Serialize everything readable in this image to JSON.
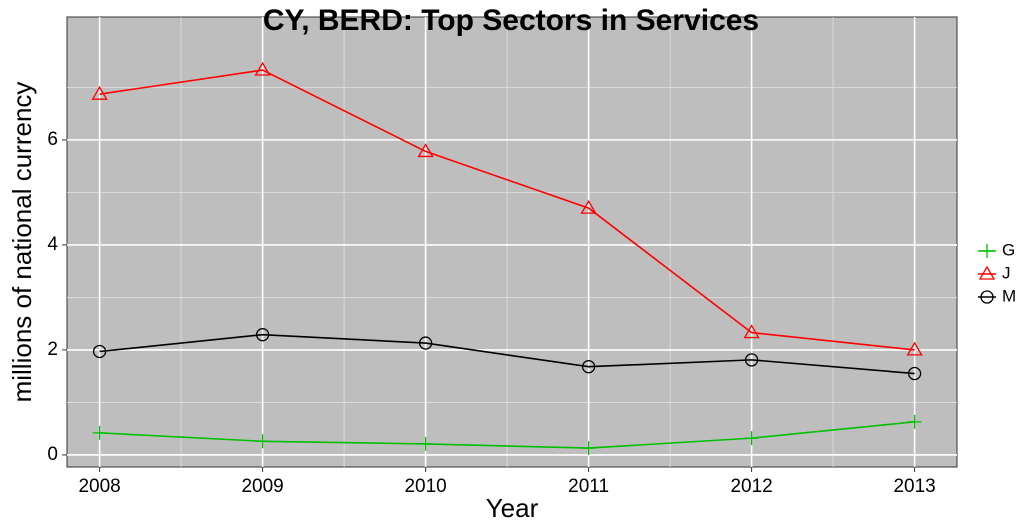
{
  "chart_data": {
    "type": "line",
    "title": "CY, BERD: Top Sectors in Services",
    "x_label": "Year",
    "y_label": "millions of national currency",
    "x": [
      2008,
      2009,
      2010,
      2011,
      2012,
      2013
    ],
    "series": [
      {
        "name": "G",
        "color": "#00c000",
        "marker": "plus",
        "values": [
          0.42,
          0.26,
          0.21,
          0.13,
          0.32,
          0.63
        ]
      },
      {
        "name": "J",
        "color": "#ff0000",
        "marker": "triangle",
        "values": [
          6.87,
          7.33,
          5.78,
          4.7,
          2.33,
          2.0
        ]
      },
      {
        "name": "M",
        "color": "#000000",
        "marker": "circle",
        "values": [
          1.97,
          2.29,
          2.13,
          1.68,
          1.81,
          1.55
        ]
      }
    ],
    "xlim": [
      2007.8,
      2013.26
    ],
    "xticks": [
      2008,
      2009,
      2010,
      2011,
      2012,
      2013
    ],
    "ylim": [
      -0.23,
      8.34
    ],
    "yticks": [
      0,
      2,
      4,
      6
    ],
    "grid": true,
    "legend": "right"
  }
}
